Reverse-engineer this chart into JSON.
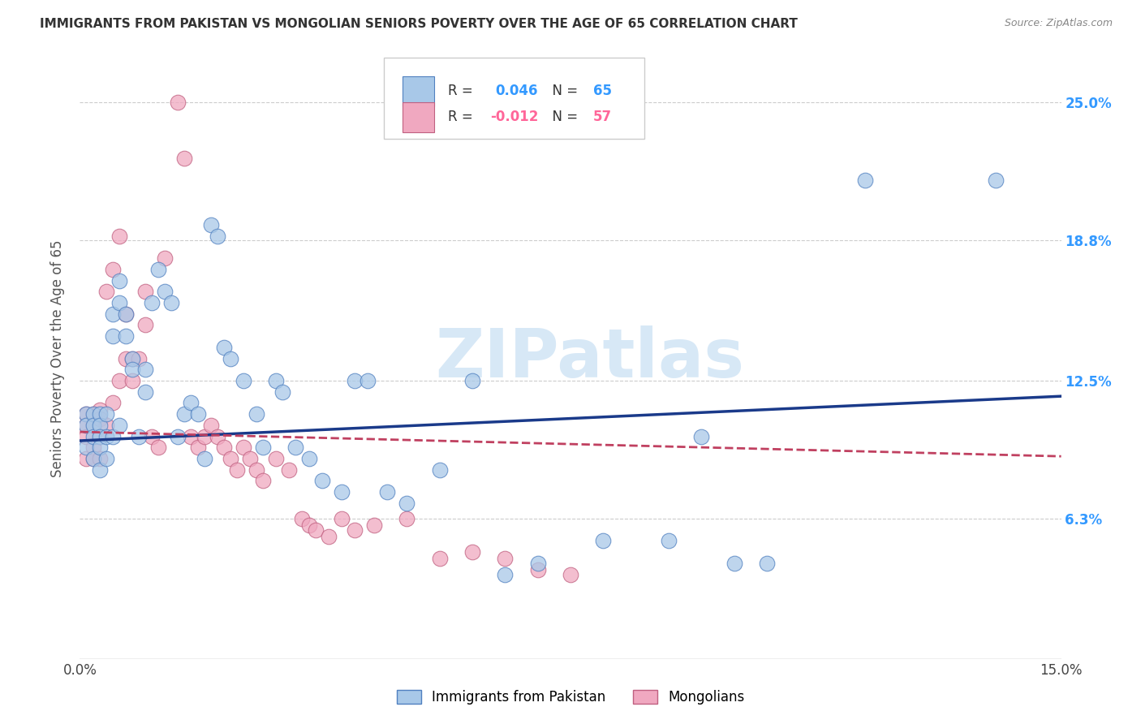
{
  "title": "IMMIGRANTS FROM PAKISTAN VS MONGOLIAN SENIORS POVERTY OVER THE AGE OF 65 CORRELATION CHART",
  "source": "Source: ZipAtlas.com",
  "ylabel": "Seniors Poverty Over the Age of 65",
  "xlim": [
    0.0,
    0.15
  ],
  "ylim": [
    0.0,
    0.27
  ],
  "ytick_positions": [
    0.063,
    0.125,
    0.188,
    0.25
  ],
  "ytick_labels": [
    "6.3%",
    "12.5%",
    "18.8%",
    "25.0%"
  ],
  "xtick_positions": [
    0.0,
    0.01,
    0.02,
    0.03,
    0.04,
    0.05,
    0.06,
    0.07,
    0.08,
    0.09,
    0.1,
    0.11,
    0.12,
    0.13,
    0.14,
    0.15
  ],
  "blue_R": "0.046",
  "blue_N": "65",
  "pink_R": "-0.012",
  "pink_N": "57",
  "blue_label": "Immigrants from Pakistan",
  "pink_label": "Mongolians",
  "blue_color": "#A8C8E8",
  "pink_color": "#F0A8C0",
  "blue_edge_color": "#5080C0",
  "pink_edge_color": "#C06080",
  "blue_line_color": "#1A3A8A",
  "pink_line_color": "#C04060",
  "watermark_text": "ZIPatlas",
  "title_fontsize": 11,
  "source_fontsize": 9,
  "blue_scatter_x": [
    0.001,
    0.001,
    0.001,
    0.002,
    0.002,
    0.002,
    0.002,
    0.003,
    0.003,
    0.003,
    0.003,
    0.003,
    0.004,
    0.004,
    0.004,
    0.005,
    0.005,
    0.005,
    0.006,
    0.006,
    0.006,
    0.007,
    0.007,
    0.008,
    0.008,
    0.009,
    0.01,
    0.01,
    0.011,
    0.012,
    0.013,
    0.014,
    0.015,
    0.016,
    0.017,
    0.018,
    0.019,
    0.02,
    0.021,
    0.022,
    0.023,
    0.025,
    0.027,
    0.028,
    0.03,
    0.031,
    0.033,
    0.035,
    0.037,
    0.04,
    0.042,
    0.044,
    0.047,
    0.05,
    0.055,
    0.06,
    0.065,
    0.07,
    0.08,
    0.09,
    0.095,
    0.1,
    0.105,
    0.12,
    0.14
  ],
  "blue_scatter_y": [
    0.11,
    0.105,
    0.095,
    0.11,
    0.105,
    0.1,
    0.09,
    0.11,
    0.105,
    0.1,
    0.095,
    0.085,
    0.11,
    0.1,
    0.09,
    0.155,
    0.145,
    0.1,
    0.17,
    0.16,
    0.105,
    0.155,
    0.145,
    0.135,
    0.13,
    0.1,
    0.13,
    0.12,
    0.16,
    0.175,
    0.165,
    0.16,
    0.1,
    0.11,
    0.115,
    0.11,
    0.09,
    0.195,
    0.19,
    0.14,
    0.135,
    0.125,
    0.11,
    0.095,
    0.125,
    0.12,
    0.095,
    0.09,
    0.08,
    0.075,
    0.125,
    0.125,
    0.075,
    0.07,
    0.085,
    0.125,
    0.038,
    0.043,
    0.053,
    0.053,
    0.1,
    0.043,
    0.043,
    0.215,
    0.215
  ],
  "pink_scatter_x": [
    0.001,
    0.001,
    0.001,
    0.001,
    0.002,
    0.002,
    0.002,
    0.002,
    0.003,
    0.003,
    0.003,
    0.003,
    0.004,
    0.004,
    0.005,
    0.005,
    0.006,
    0.006,
    0.007,
    0.007,
    0.008,
    0.008,
    0.009,
    0.01,
    0.01,
    0.011,
    0.012,
    0.013,
    0.015,
    0.016,
    0.017,
    0.018,
    0.019,
    0.02,
    0.021,
    0.022,
    0.023,
    0.024,
    0.025,
    0.026,
    0.027,
    0.028,
    0.03,
    0.032,
    0.034,
    0.035,
    0.036,
    0.038,
    0.04,
    0.042,
    0.045,
    0.05,
    0.055,
    0.06,
    0.065,
    0.07,
    0.075
  ],
  "pink_scatter_y": [
    0.11,
    0.105,
    0.1,
    0.09,
    0.11,
    0.105,
    0.095,
    0.09,
    0.112,
    0.108,
    0.1,
    0.09,
    0.165,
    0.105,
    0.175,
    0.115,
    0.19,
    0.125,
    0.155,
    0.135,
    0.135,
    0.125,
    0.135,
    0.165,
    0.15,
    0.1,
    0.095,
    0.18,
    0.25,
    0.225,
    0.1,
    0.095,
    0.1,
    0.105,
    0.1,
    0.095,
    0.09,
    0.085,
    0.095,
    0.09,
    0.085,
    0.08,
    0.09,
    0.085,
    0.063,
    0.06,
    0.058,
    0.055,
    0.063,
    0.058,
    0.06,
    0.063,
    0.045,
    0.048,
    0.045,
    0.04,
    0.038
  ],
  "blue_trend_x": [
    0.0,
    0.15
  ],
  "blue_trend_y": [
    0.098,
    0.118
  ],
  "pink_trend_x": [
    0.0,
    0.15
  ],
  "pink_trend_y": [
    0.102,
    0.091
  ]
}
